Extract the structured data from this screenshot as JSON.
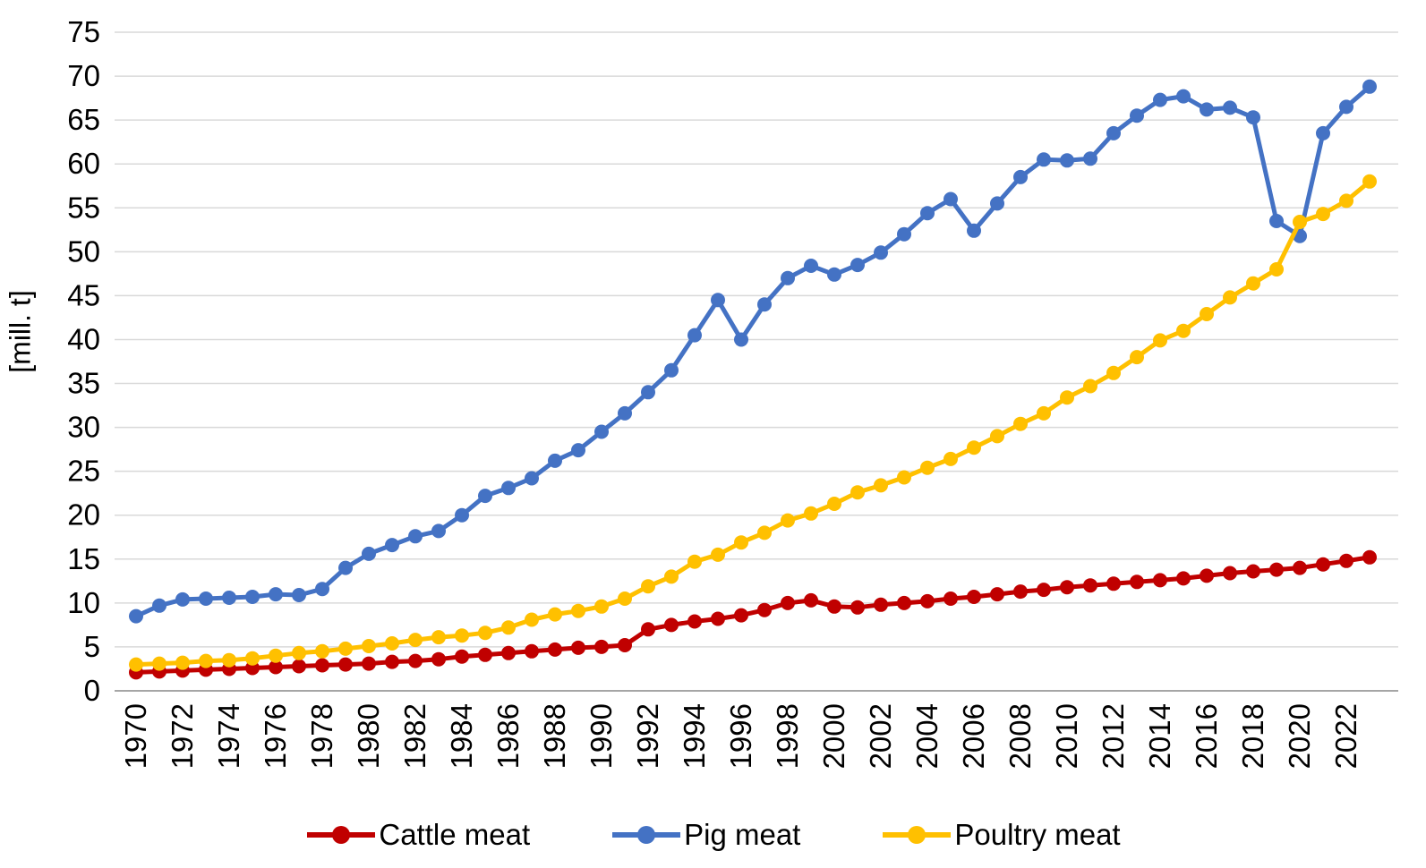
{
  "chart_data": {
    "type": "line",
    "title": "",
    "xlabel": "",
    "ylabel": "[mill. t]",
    "ylim": [
      0,
      75
    ],
    "ytick_step": 5,
    "x_label_every": 2,
    "grid": "horizontal",
    "legend_position": "bottom",
    "colors": {
      "grid": "#d9d9d9",
      "axis": "#a6a6a6",
      "text": "#000000"
    },
    "x": [
      1970,
      1971,
      1972,
      1973,
      1974,
      1975,
      1976,
      1977,
      1978,
      1979,
      1980,
      1981,
      1982,
      1983,
      1984,
      1985,
      1986,
      1987,
      1988,
      1989,
      1990,
      1991,
      1992,
      1993,
      1994,
      1995,
      1996,
      1997,
      1998,
      1999,
      2000,
      2001,
      2002,
      2003,
      2004,
      2005,
      2006,
      2007,
      2008,
      2009,
      2010,
      2011,
      2012,
      2013,
      2014,
      2015,
      2016,
      2017,
      2018,
      2019,
      2020,
      2021,
      2022,
      2023
    ],
    "series": [
      {
        "name": "Cattle meat",
        "color": "#c00000",
        "values": [
          2.1,
          2.2,
          2.3,
          2.4,
          2.5,
          2.6,
          2.7,
          2.8,
          2.9,
          3.0,
          3.1,
          3.3,
          3.4,
          3.6,
          3.9,
          4.1,
          4.3,
          4.5,
          4.7,
          4.9,
          5.0,
          5.2,
          7.0,
          7.5,
          7.9,
          8.2,
          8.6,
          9.2,
          10.0,
          10.3,
          9.6,
          9.5,
          9.8,
          10.0,
          10.2,
          10.5,
          10.7,
          11.0,
          11.3,
          11.5,
          11.8,
          12.0,
          12.2,
          12.4,
          12.6,
          12.8,
          13.1,
          13.4,
          13.6,
          13.8,
          14.0,
          14.4,
          14.8,
          15.2
        ]
      },
      {
        "name": "Pig meat",
        "color": "#4472c4",
        "values": [
          8.5,
          9.7,
          10.4,
          10.5,
          10.6,
          10.7,
          11.0,
          10.9,
          11.6,
          14.0,
          15.6,
          16.6,
          17.6,
          18.2,
          20.0,
          22.2,
          23.1,
          24.2,
          26.2,
          27.4,
          29.5,
          31.6,
          34.0,
          36.5,
          40.5,
          44.5,
          40.0,
          44.0,
          47.0,
          48.4,
          47.4,
          48.5,
          49.9,
          52.0,
          54.4,
          56.0,
          52.4,
          55.5,
          58.5,
          60.5,
          60.4,
          60.6,
          63.5,
          65.5,
          67.3,
          67.7,
          66.2,
          66.4,
          65.3,
          53.5,
          51.8,
          63.5,
          66.5,
          68.8
        ]
      },
      {
        "name": "Poultry meat",
        "color": "#ffc000",
        "values": [
          3.0,
          3.1,
          3.2,
          3.4,
          3.5,
          3.7,
          4.0,
          4.3,
          4.5,
          4.8,
          5.1,
          5.4,
          5.8,
          6.1,
          6.3,
          6.6,
          7.2,
          8.1,
          8.7,
          9.1,
          9.6,
          10.5,
          11.9,
          13.0,
          14.7,
          15.5,
          16.9,
          18.0,
          19.4,
          20.2,
          21.3,
          22.6,
          23.4,
          24.3,
          25.4,
          26.4,
          27.7,
          29.0,
          30.4,
          31.6,
          33.4,
          34.7,
          36.2,
          38.0,
          39.9,
          41.0,
          42.9,
          44.8,
          46.4,
          48.0,
          53.4,
          54.3,
          55.8,
          58.0
        ]
      }
    ]
  }
}
